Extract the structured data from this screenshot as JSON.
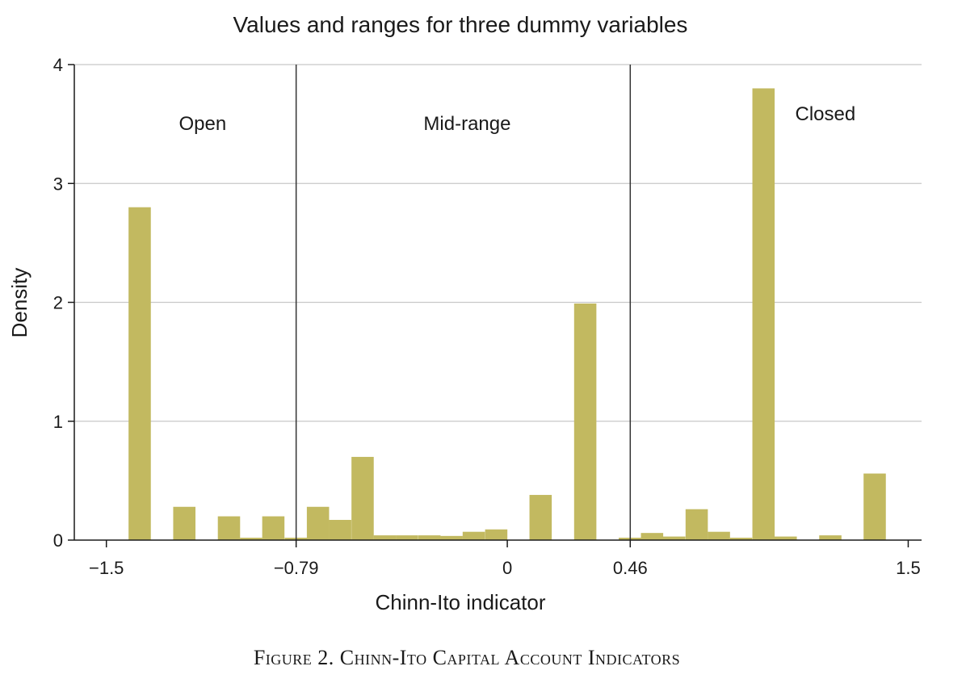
{
  "chart_data": {
    "type": "bar",
    "title": "Values and ranges for three dummy variables",
    "xlabel": "Chinn-Ito indicator",
    "ylabel": "Density",
    "xlim": [
      -1.62,
      1.55
    ],
    "ylim": [
      0,
      4
    ],
    "grid": true,
    "bar_color": "#c2b960",
    "x_ticks": [
      {
        "value": -1.5,
        "label": "−1.5"
      },
      {
        "value": -0.79,
        "label": "−0.79"
      },
      {
        "value": 0,
        "label": "0"
      },
      {
        "value": 0.46,
        "label": "0.46"
      },
      {
        "value": 1.5,
        "label": "1.5"
      }
    ],
    "y_ticks": [
      {
        "value": 0,
        "label": "0"
      },
      {
        "value": 1,
        "label": "1"
      },
      {
        "value": 2,
        "label": "2"
      },
      {
        "value": 3,
        "label": "3"
      },
      {
        "value": 4,
        "label": "4"
      }
    ],
    "cutoffs": [
      -0.79,
      0.46
    ],
    "regions": [
      {
        "label": "Open",
        "x": -1.14,
        "y": 3.45
      },
      {
        "label": "Mid-range",
        "x": -0.15,
        "y": 3.45
      },
      {
        "label": "Closed",
        "x": 1.19,
        "y": 3.53
      }
    ],
    "bin_width": 0.0833,
    "bins": [
      {
        "x0": -1.417,
        "value": 2.8
      },
      {
        "x0": -1.25,
        "value": 0.28
      },
      {
        "x0": -1.083,
        "value": 0.2
      },
      {
        "x0": -1.0,
        "value": 0.02
      },
      {
        "x0": -0.917,
        "value": 0.2
      },
      {
        "x0": -0.833,
        "value": 0.02
      },
      {
        "x0": -0.75,
        "value": 0.28
      },
      {
        "x0": -0.667,
        "value": 0.17
      },
      {
        "x0": -0.583,
        "value": 0.7
      },
      {
        "x0": -0.5,
        "value": 0.04
      },
      {
        "x0": -0.417,
        "value": 0.04
      },
      {
        "x0": -0.333,
        "value": 0.04
      },
      {
        "x0": -0.25,
        "value": 0.035
      },
      {
        "x0": -0.167,
        "value": 0.07
      },
      {
        "x0": -0.083,
        "value": 0.09
      },
      {
        "x0": 0.083,
        "value": 0.38
      },
      {
        "x0": 0.25,
        "value": 1.99
      },
      {
        "x0": 0.417,
        "value": 0.02
      },
      {
        "x0": 0.5,
        "value": 0.06
      },
      {
        "x0": 0.583,
        "value": 0.03
      },
      {
        "x0": 0.667,
        "value": 0.26
      },
      {
        "x0": 0.75,
        "value": 0.07
      },
      {
        "x0": 0.833,
        "value": 0.02
      },
      {
        "x0": 0.917,
        "value": 3.8
      },
      {
        "x0": 1.0,
        "value": 0.03
      },
      {
        "x0": 1.167,
        "value": 0.04
      },
      {
        "x0": 1.333,
        "value": 0.56
      }
    ]
  },
  "caption": "Figure 2. Chinn-Ito Capital Account Indicators"
}
